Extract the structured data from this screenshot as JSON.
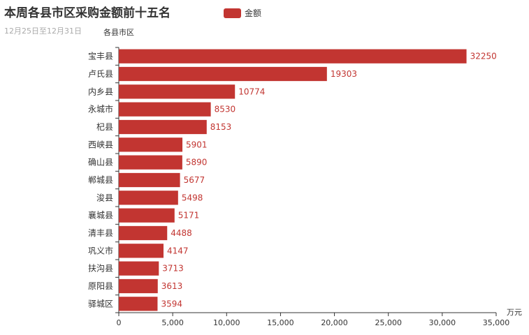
{
  "title": "本周各县市区采购金额前十五名",
  "subtitle": "12月25日至12月31日",
  "legend": {
    "label": "金额",
    "color": "#c23531"
  },
  "chart_data": {
    "type": "bar",
    "orientation": "horizontal",
    "ylabel": "各县市区",
    "xlabel": "万元",
    "xlim": [
      0,
      35000
    ],
    "xticks": [
      "0",
      "5,000",
      "10,000",
      "15,000",
      "20,000",
      "25,000",
      "30,000",
      "35,000"
    ],
    "grid": false,
    "legend_position": "top",
    "categories": [
      "宝丰县",
      "卢氏县",
      "内乡县",
      "永城市",
      "杞县",
      "西峡县",
      "确山县",
      "郸城县",
      "浚县",
      "襄城县",
      "清丰县",
      "巩义市",
      "扶沟县",
      "原阳县",
      "驿城区"
    ],
    "series": [
      {
        "name": "金额",
        "color": "#c23531",
        "values": [
          32250,
          19303,
          10774,
          8530,
          8153,
          5901,
          5890,
          5677,
          5498,
          5171,
          4488,
          4147,
          3713,
          3613,
          3594
        ]
      }
    ]
  }
}
